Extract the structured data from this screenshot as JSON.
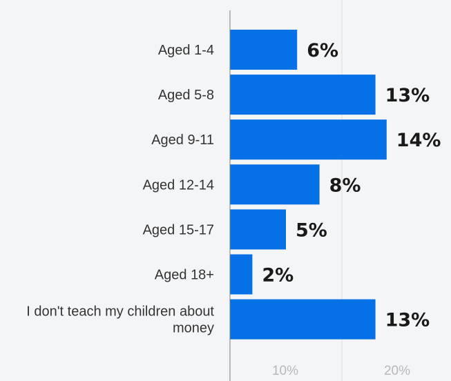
{
  "chart_data": {
    "type": "bar",
    "orientation": "horizontal",
    "categories": [
      [
        "Aged 1-4"
      ],
      [
        "Aged 5-8"
      ],
      [
        "Aged 9-11"
      ],
      [
        "Aged 12-14"
      ],
      [
        "Aged 15-17"
      ],
      [
        "Aged 18+"
      ],
      [
        "I don't teach my children about",
        "money"
      ]
    ],
    "values": [
      6,
      13,
      14,
      8,
      5,
      2,
      13
    ],
    "value_labels": [
      "6%",
      "13%",
      "14%",
      "8%",
      "5%",
      "2%",
      "13%"
    ],
    "xticks": [
      10,
      20
    ],
    "xtick_labels": [
      "10%",
      "20%"
    ],
    "xlim": [
      0,
      20
    ],
    "grid": true,
    "colors": {
      "bar": "#0671e6",
      "background": "#f4f5f7",
      "grid": "#dddddd",
      "axis": "#7a7a7a"
    }
  }
}
